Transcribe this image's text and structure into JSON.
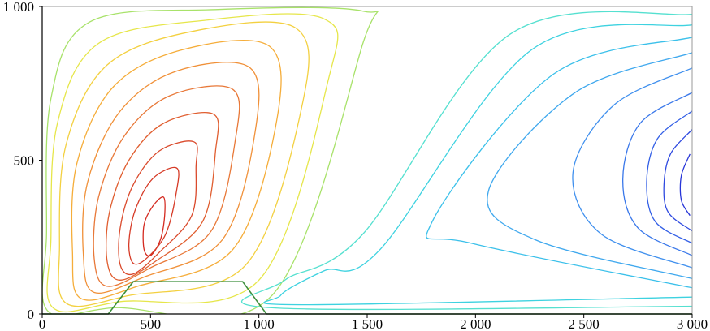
{
  "chart_data": {
    "type": "contour",
    "title": "",
    "xlabel": "",
    "ylabel": "",
    "xlim": [
      0,
      3000
    ],
    "ylim": [
      0,
      1000
    ],
    "x_ticks": [
      {
        "value": 0,
        "label": "0"
      },
      {
        "value": 500,
        "label": "500"
      },
      {
        "value": 1000,
        "label": "1 000"
      },
      {
        "value": 1500,
        "label": "1 500"
      },
      {
        "value": 2000,
        "label": "2 000"
      },
      {
        "value": 2500,
        "label": "2 500"
      },
      {
        "value": 3000,
        "label": "3 000"
      }
    ],
    "y_ticks": [
      {
        "value": 0,
        "label": "0"
      },
      {
        "value": 500,
        "label": "500"
      },
      {
        "value": 1000,
        "label": "1 000"
      }
    ],
    "grid": false,
    "legend": "none",
    "colormap": "jet",
    "terrain": {
      "color": "#3c8f3c",
      "points": [
        [
          0,
          0
        ],
        [
          305,
          0
        ],
        [
          420,
          105
        ],
        [
          925,
          105
        ],
        [
          1035,
          0
        ],
        [
          3000,
          0
        ]
      ]
    },
    "vortices": [
      {
        "name": "",
        "center": [
          560,
          300
        ],
        "levels": [
          {
            "color": "#d42a20",
            "points": [
              [
                560,
                380
              ],
              [
                510,
                350
              ],
              [
                470,
                290
              ],
              [
                470,
                210
              ],
              [
                500,
                190
              ],
              [
                545,
                240
              ],
              [
                565,
                320
              ]
            ]
          },
          {
            "color": "#d63a26",
            "points": [
              [
                620,
                475
              ],
              [
                510,
                440
              ],
              [
                430,
                340
              ],
              [
                400,
                230
              ],
              [
                420,
                165
              ],
              [
                480,
                180
              ],
              [
                570,
                260
              ],
              [
                620,
                400
              ]
            ]
          },
          {
            "color": "#da4a2c",
            "points": [
              [
                700,
                560
              ],
              [
                540,
                530
              ],
              [
                420,
                420
              ],
              [
                360,
                280
              ],
              [
                360,
                160
              ],
              [
                420,
                130
              ],
              [
                540,
                200
              ],
              [
                690,
                320
              ],
              [
                710,
                480
              ]
            ]
          },
          {
            "color": "#e05e30",
            "points": [
              [
                790,
                650
              ],
              [
                560,
                620
              ],
              [
                400,
                500
              ],
              [
                310,
                330
              ],
              [
                300,
                170
              ],
              [
                360,
                110
              ],
              [
                520,
                170
              ],
              [
                740,
                300
              ],
              [
                800,
                530
              ]
            ]
          },
          {
            "color": "#e87838",
            "points": [
              [
                880,
                730
              ],
              [
                590,
                710
              ],
              [
                380,
                580
              ],
              [
                260,
                380
              ],
              [
                240,
                180
              ],
              [
                300,
                90
              ],
              [
                500,
                150
              ],
              [
                780,
                270
              ],
              [
                890,
                560
              ]
            ]
          },
          {
            "color": "#f09038",
            "points": [
              [
                960,
                800
              ],
              [
                620,
                790
              ],
              [
                360,
                660
              ],
              [
                210,
                430
              ],
              [
                190,
                190
              ],
              [
                240,
                70
              ],
              [
                470,
                120
              ],
              [
                830,
                240
              ],
              [
                980,
                580
              ]
            ]
          },
          {
            "color": "#f5ad3a",
            "points": [
              [
                1050,
                870
              ],
              [
                650,
                860
              ],
              [
                330,
                740
              ],
              [
                160,
                490
              ],
              [
                140,
                200
              ],
              [
                180,
                50
              ],
              [
                440,
                90
              ],
              [
                880,
                210
              ],
              [
                1080,
                620
              ]
            ]
          },
          {
            "color": "#f3d040",
            "points": [
              [
                1170,
                930
              ],
              [
                700,
                920
              ],
              [
                300,
                810
              ],
              [
                110,
                550
              ],
              [
                80,
                220
              ],
              [
                110,
                35
              ],
              [
                400,
                60
              ],
              [
                940,
                160
              ],
              [
                1200,
                680
              ]
            ]
          },
          {
            "color": "#e6e64a",
            "points": [
              [
                1300,
                960
              ],
              [
                750,
                955
              ],
              [
                260,
                880
              ],
              [
                70,
                620
              ],
              [
                40,
                240
              ],
              [
                50,
                20
              ],
              [
                360,
                40
              ],
              [
                1000,
                110
              ],
              [
                1320,
                760
              ]
            ]
          },
          {
            "color": "#a8e26a",
            "points": [
              [
                1480,
                985
              ],
              [
                800,
                990
              ],
              [
                220,
                950
              ],
              [
                40,
                700
              ],
              [
                20,
                260
              ],
              [
                25,
                10
              ],
              [
                330,
                20
              ],
              [
                1060,
                60
              ],
              [
                1480,
                880
              ]
            ]
          }
        ]
      },
      {
        "name": "",
        "center": [
          2880,
          430
        ],
        "levels": [
          {
            "color": "#2836d8",
            "points": [
              [
                2990,
                520
              ],
              [
                2950,
                450
              ],
              [
                2950,
                370
              ],
              [
                2990,
                320
              ]
            ]
          },
          {
            "color": "#2f4ae0",
            "points": [
              [
                3000,
                600
              ],
              [
                2900,
                520
              ],
              [
                2870,
                420
              ],
              [
                2890,
                330
              ],
              [
                3000,
                270
              ]
            ]
          },
          {
            "color": "#3460e6",
            "points": [
              [
                3000,
                660
              ],
              [
                2840,
                570
              ],
              [
                2790,
                430
              ],
              [
                2830,
                300
              ],
              [
                3000,
                230
              ]
            ]
          },
          {
            "color": "#3a78ea",
            "points": [
              [
                3000,
                720
              ],
              [
                2760,
                620
              ],
              [
                2680,
                440
              ],
              [
                2750,
                280
              ],
              [
                3000,
                190
              ]
            ]
          },
          {
            "color": "#4090ee",
            "points": [
              [
                3000,
                800
              ],
              [
                2640,
                680
              ],
              [
                2450,
                460
              ],
              [
                2580,
                260
              ],
              [
                3000,
                150
              ]
            ]
          },
          {
            "color": "#3fa8ee",
            "points": [
              [
                3000,
                850
              ],
              [
                2460,
                720
              ],
              [
                2060,
                400
              ],
              [
                2280,
                240
              ],
              [
                3000,
                115
              ]
            ]
          },
          {
            "color": "#3bc0ea",
            "points": [
              [
                3000,
                900
              ],
              [
                2360,
                780
              ],
              [
                1800,
                300
              ],
              [
                1980,
                230
              ],
              [
                3000,
                85
              ]
            ]
          },
          {
            "color": "#3ed2e0",
            "points": [
              [
                3000,
                940
              ],
              [
                2260,
                860
              ],
              [
                1560,
                210
              ],
              [
                1300,
                140
              ],
              [
                1100,
                60
              ],
              [
                1200,
                30
              ],
              [
                3000,
                55
              ]
            ]
          },
          {
            "color": "#55e0d0",
            "points": [
              [
                3000,
                975
              ],
              [
                2160,
                910
              ],
              [
                1480,
                260
              ],
              [
                1120,
                110
              ],
              [
                1060,
                20
              ],
              [
                3000,
                25
              ]
            ]
          }
        ]
      }
    ]
  }
}
